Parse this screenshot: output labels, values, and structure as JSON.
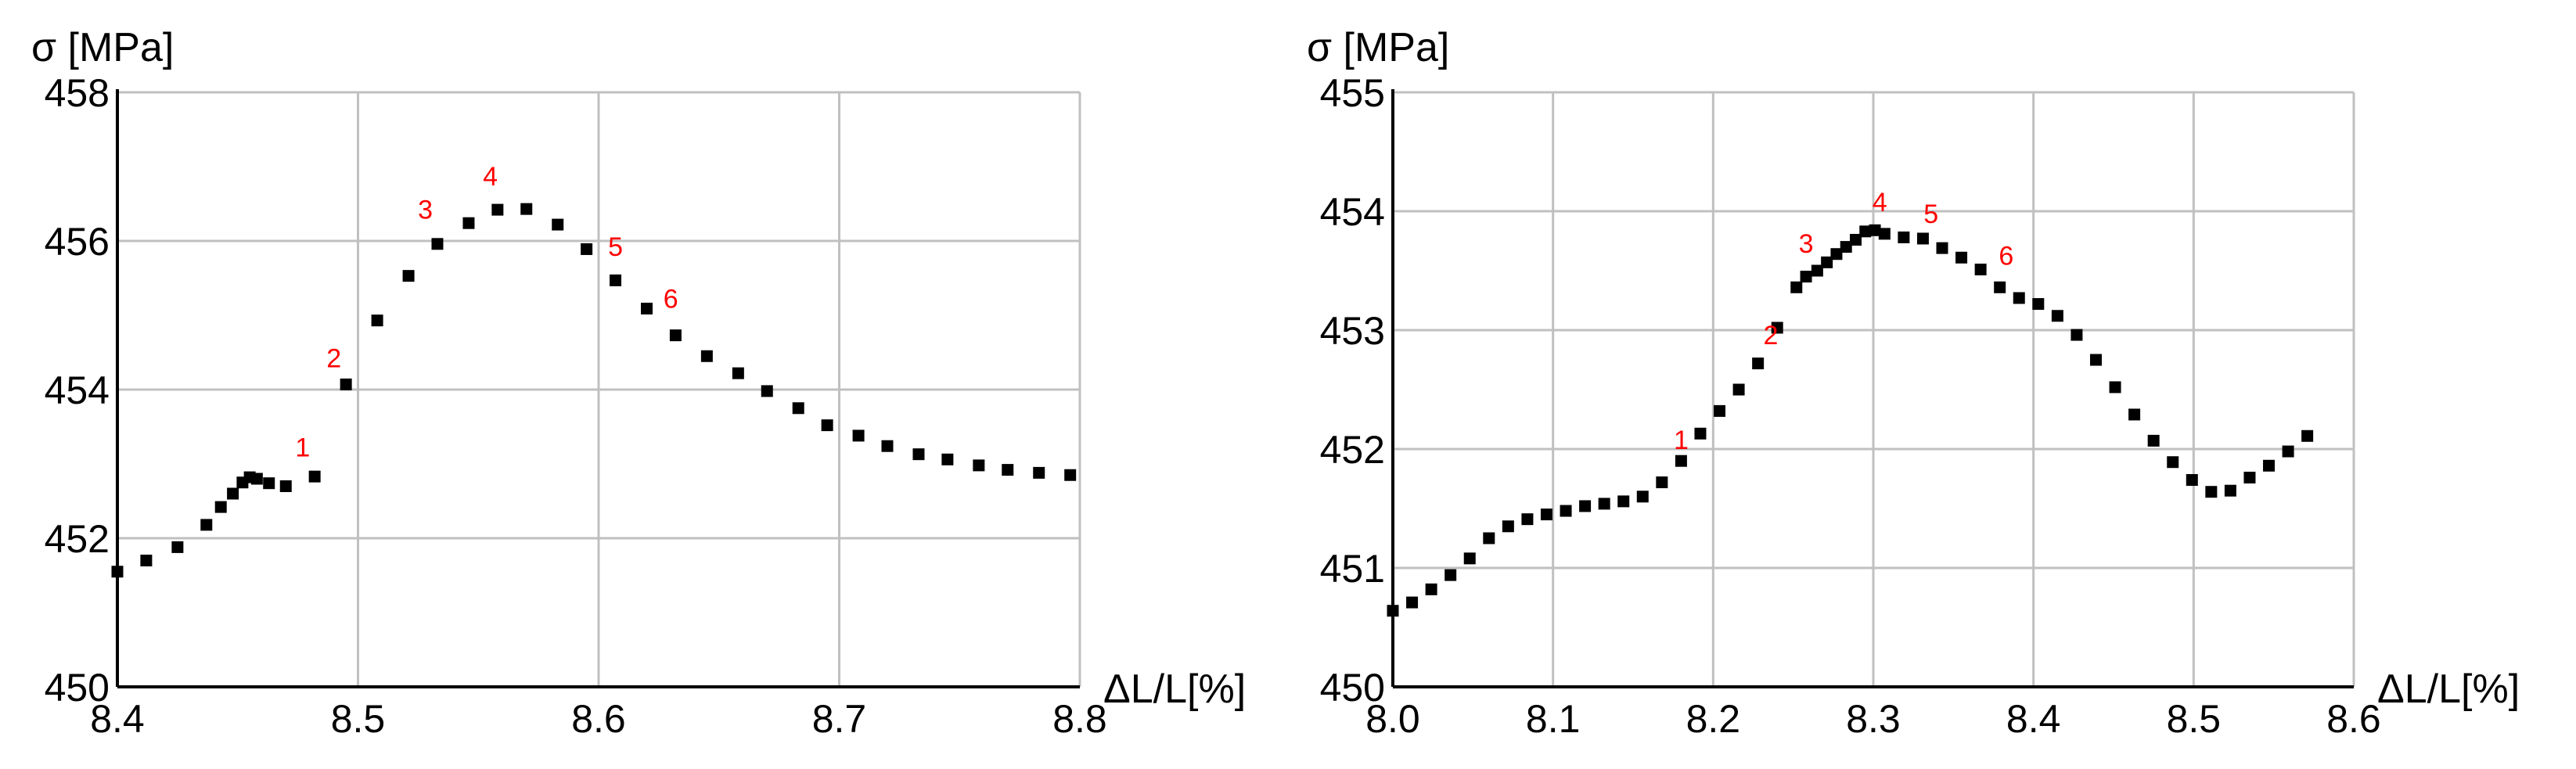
{
  "colors": {
    "marker": "#000000",
    "point_label": "#ff0000",
    "grid": "#c0c0c0"
  },
  "chart_data": [
    {
      "type": "scatter",
      "ylabel": "σ [MPa]",
      "xlabel": "ΔL/L[%]",
      "xlim": [
        8.4,
        8.8
      ],
      "ylim": [
        450,
        458
      ],
      "xticks": [
        "8.4",
        "8.5",
        "8.6",
        "8.7",
        "8.8"
      ],
      "yticks": [
        "450",
        "452",
        "454",
        "456",
        "458"
      ],
      "grid": true,
      "points": [
        [
          8.4,
          451.55
        ],
        [
          8.412,
          451.7
        ],
        [
          8.425,
          451.88
        ],
        [
          8.437,
          452.18
        ],
        [
          8.443,
          452.42
        ],
        [
          8.448,
          452.6
        ],
        [
          8.452,
          452.75
        ],
        [
          8.455,
          452.82
        ],
        [
          8.458,
          452.8
        ],
        [
          8.463,
          452.74
        ],
        [
          8.47,
          452.7
        ],
        [
          8.482,
          452.83
        ],
        [
          8.495,
          454.07
        ],
        [
          8.508,
          454.93
        ],
        [
          8.521,
          455.53
        ],
        [
          8.533,
          455.96
        ],
        [
          8.546,
          456.24
        ],
        [
          8.558,
          456.42
        ],
        [
          8.57,
          456.43
        ],
        [
          8.583,
          456.22
        ],
        [
          8.595,
          455.89
        ],
        [
          8.607,
          455.47
        ],
        [
          8.62,
          455.09
        ],
        [
          8.632,
          454.73
        ],
        [
          8.645,
          454.45
        ],
        [
          8.658,
          454.22
        ],
        [
          8.67,
          453.98
        ],
        [
          8.683,
          453.75
        ],
        [
          8.695,
          453.52
        ],
        [
          8.708,
          453.38
        ],
        [
          8.72,
          453.24
        ],
        [
          8.733,
          453.13
        ],
        [
          8.745,
          453.06
        ],
        [
          8.758,
          452.98
        ],
        [
          8.77,
          452.92
        ],
        [
          8.783,
          452.88
        ],
        [
          8.796,
          452.85
        ]
      ],
      "point_labels": [
        {
          "text": "1",
          "x": 8.477,
          "y": 453.1
        },
        {
          "text": "2",
          "x": 8.49,
          "y": 454.3
        },
        {
          "text": "3",
          "x": 8.528,
          "y": 456.3
        },
        {
          "text": "4",
          "x": 8.555,
          "y": 456.75
        },
        {
          "text": "5",
          "x": 8.607,
          "y": 455.8
        },
        {
          "text": "6",
          "x": 8.63,
          "y": 455.1
        }
      ]
    },
    {
      "type": "scatter",
      "ylabel": "σ [MPa]",
      "xlabel": "ΔL/L[%]",
      "xlim": [
        8.0,
        8.6
      ],
      "ylim": [
        450,
        455
      ],
      "xticks": [
        "8.0",
        "8.1",
        "8.2",
        "8.3",
        "8.4",
        "8.5",
        "8.6"
      ],
      "yticks": [
        "450",
        "451",
        "452",
        "453",
        "454",
        "455"
      ],
      "grid": true,
      "points": [
        [
          8.0,
          450.64
        ],
        [
          8.012,
          450.71
        ],
        [
          8.024,
          450.82
        ],
        [
          8.036,
          450.94
        ],
        [
          8.048,
          451.08
        ],
        [
          8.06,
          451.25
        ],
        [
          8.072,
          451.35
        ],
        [
          8.084,
          451.41
        ],
        [
          8.096,
          451.45
        ],
        [
          8.108,
          451.48
        ],
        [
          8.12,
          451.52
        ],
        [
          8.132,
          451.54
        ],
        [
          8.144,
          451.56
        ],
        [
          8.156,
          451.6
        ],
        [
          8.168,
          451.72
        ],
        [
          8.18,
          451.9
        ],
        [
          8.192,
          452.13
        ],
        [
          8.204,
          452.32
        ],
        [
          8.216,
          452.5
        ],
        [
          8.228,
          452.72
        ],
        [
          8.24,
          453.02
        ],
        [
          8.252,
          453.36
        ],
        [
          8.258,
          453.45
        ],
        [
          8.265,
          453.5
        ],
        [
          8.271,
          453.57
        ],
        [
          8.277,
          453.64
        ],
        [
          8.283,
          453.7
        ],
        [
          8.289,
          453.76
        ],
        [
          8.295,
          453.83
        ],
        [
          8.301,
          453.84
        ],
        [
          8.307,
          453.81
        ],
        [
          8.319,
          453.78
        ],
        [
          8.331,
          453.77
        ],
        [
          8.343,
          453.69
        ],
        [
          8.355,
          453.61
        ],
        [
          8.367,
          453.51
        ],
        [
          8.379,
          453.36
        ],
        [
          8.391,
          453.27
        ],
        [
          8.403,
          453.22
        ],
        [
          8.415,
          453.12
        ],
        [
          8.427,
          452.96
        ],
        [
          8.439,
          452.75
        ],
        [
          8.451,
          452.52
        ],
        [
          8.463,
          452.29
        ],
        [
          8.475,
          452.07
        ],
        [
          8.487,
          451.89
        ],
        [
          8.499,
          451.74
        ],
        [
          8.511,
          451.64
        ],
        [
          8.523,
          451.65
        ],
        [
          8.535,
          451.76
        ],
        [
          8.547,
          451.86
        ],
        [
          8.559,
          451.98
        ],
        [
          8.571,
          452.11
        ]
      ],
      "point_labels": [
        {
          "text": "1",
          "x": 8.18,
          "y": 452.0
        },
        {
          "text": "2",
          "x": 8.236,
          "y": 452.88
        },
        {
          "text": "3",
          "x": 8.258,
          "y": 453.65
        },
        {
          "text": "4",
          "x": 8.304,
          "y": 454.0
        },
        {
          "text": "5",
          "x": 8.336,
          "y": 453.9
        },
        {
          "text": "6",
          "x": 8.383,
          "y": 453.55
        }
      ]
    }
  ]
}
